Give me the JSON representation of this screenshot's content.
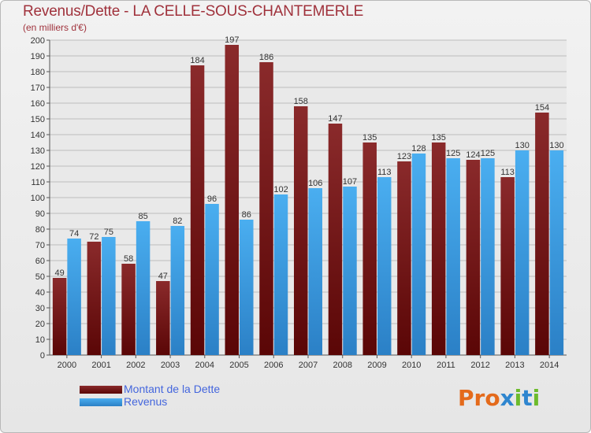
{
  "title": "Revenus/Dette - LA CELLE-SOUS-CHANTEMERLE",
  "subtitle": "(en milliers d'€)",
  "logo": {
    "text": "Proxiti",
    "colors": [
      "#e46a1b",
      "#e46a1b",
      "#e46a1b",
      "#2f86cf",
      "#6dbb2c",
      "#2f86cf",
      "#6dbb2c"
    ]
  },
  "chart_data": {
    "type": "bar",
    "title": "Revenus/Dette - LA CELLE-SOUS-CHANTEMERLE",
    "subtitle": "(en milliers d'€)",
    "categories": [
      "2000",
      "2001",
      "2002",
      "2003",
      "2004",
      "2005",
      "2006",
      "2007",
      "2008",
      "2009",
      "2010",
      "2011",
      "2012",
      "2013",
      "2014"
    ],
    "series": [
      {
        "name": "Montant de la Dette",
        "color": "#7b1f20",
        "values": [
          49,
          72,
          58,
          47,
          184,
          197,
          186,
          158,
          147,
          135,
          123,
          135,
          124,
          113,
          154
        ]
      },
      {
        "name": "Revenus",
        "color": "#3a9ee0",
        "values": [
          74,
          75,
          85,
          82,
          96,
          86,
          102,
          106,
          107,
          113,
          128,
          125,
          125,
          130,
          130
        ]
      }
    ],
    "ylim": [
      0,
      200
    ],
    "yticks": [
      0,
      10,
      20,
      30,
      40,
      50,
      60,
      70,
      80,
      90,
      100,
      110,
      120,
      130,
      140,
      150,
      160,
      170,
      180,
      190,
      200
    ],
    "grid": true,
    "legend": "bottom-left"
  }
}
